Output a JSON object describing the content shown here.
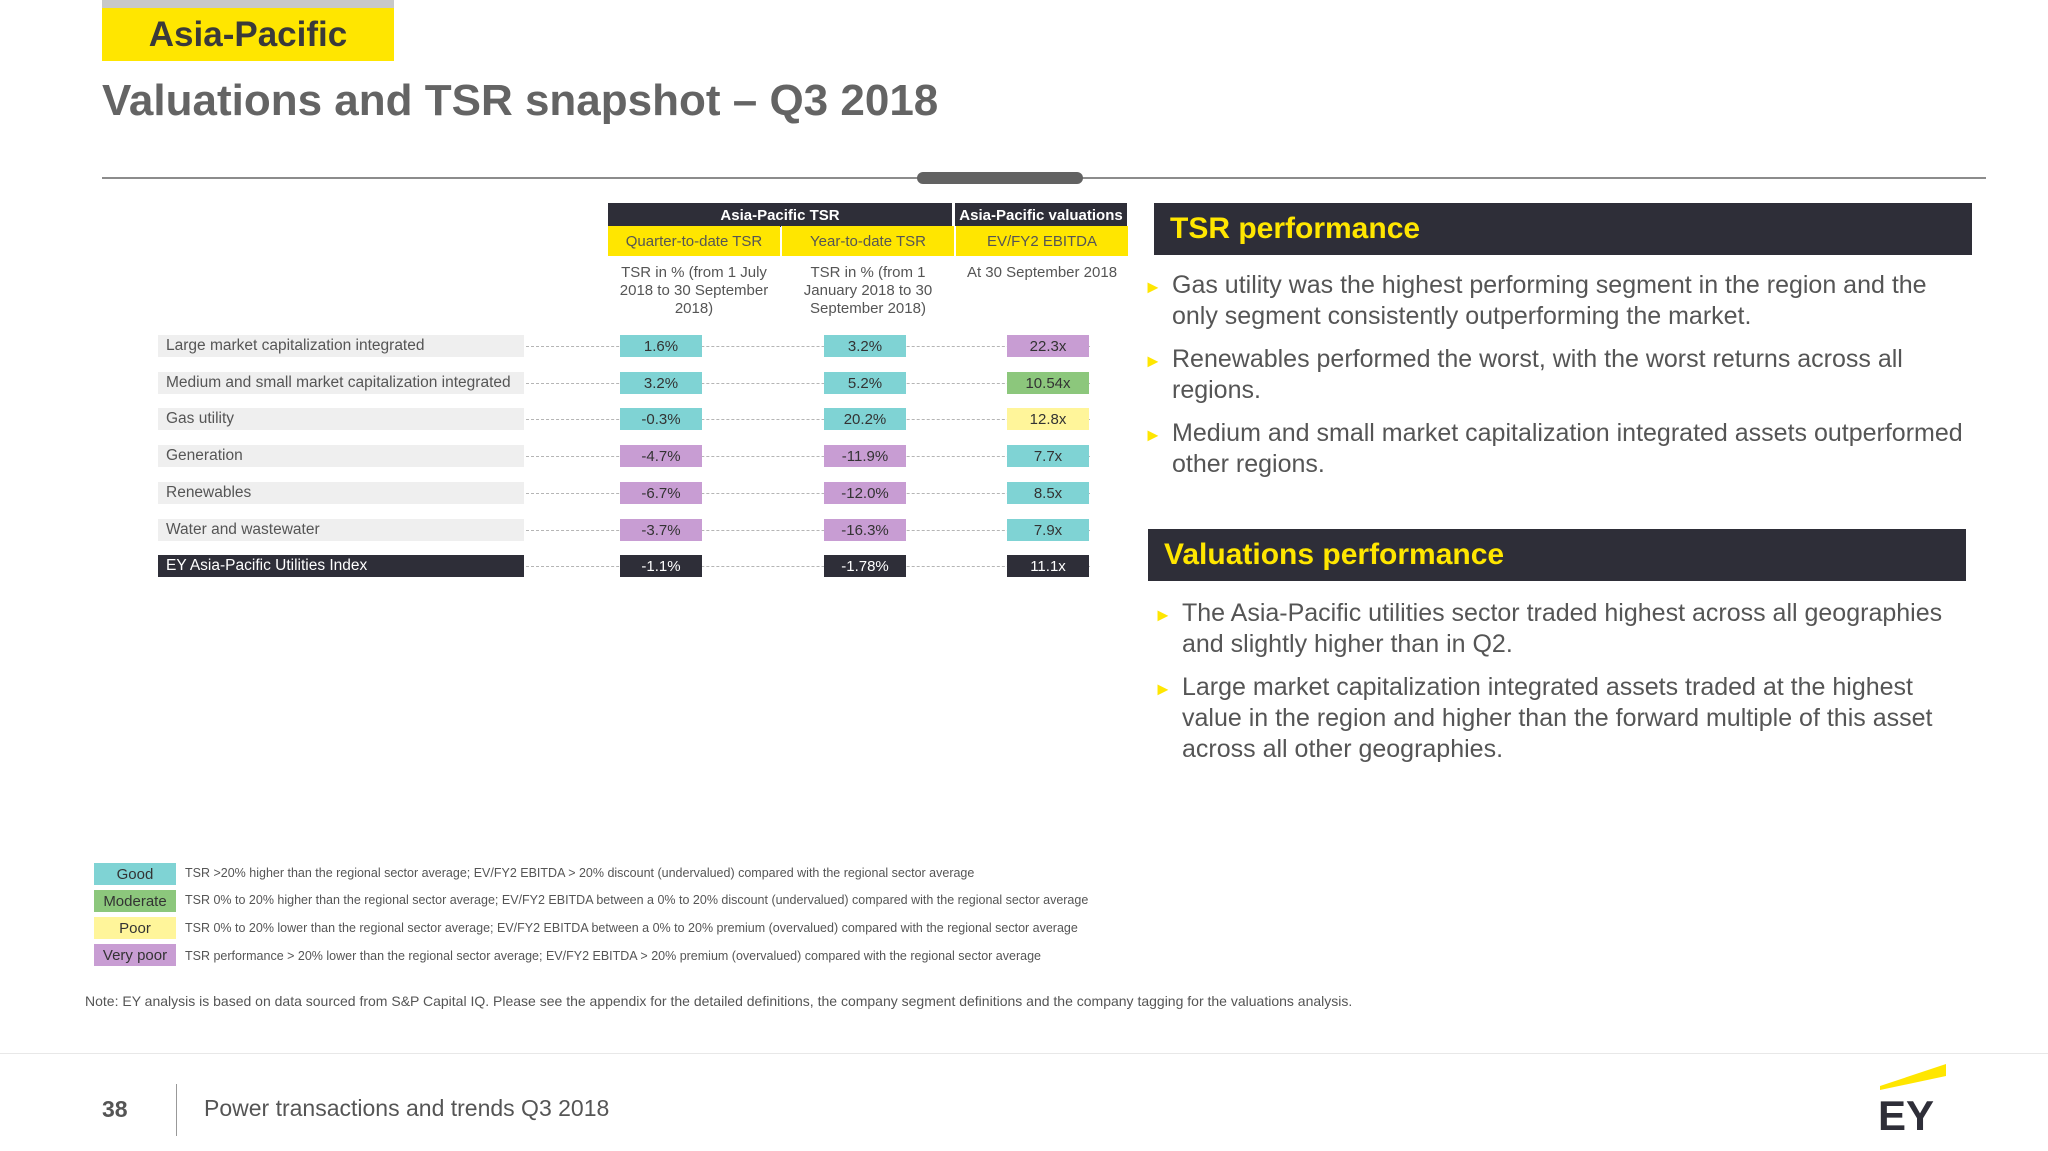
{
  "header": {
    "region_tag": "Asia-Pacific",
    "title": "Valuations and TSR snapshot – Q3 2018"
  },
  "table": {
    "group_tsr": "Asia-Pacific TSR",
    "group_valuations": "Asia-Pacific valuations",
    "columns": [
      {
        "label": "Quarter-to-date TSR",
        "note": "TSR in % (from 1 July 2018 to 30 September 2018)"
      },
      {
        "label": "Year-to-date TSR",
        "note": "TSR in % (from 1 January 2018 to 30 September 2018)"
      },
      {
        "label": "EV/FY2 EBITDA",
        "note": "At 30 September 2018"
      }
    ],
    "rows": [
      {
        "label": "Large market capitalization integrated",
        "qtd": "1.6%",
        "qtd_rating": "good",
        "ytd": "3.2%",
        "ytd_rating": "good",
        "ev": "22.3x",
        "ev_rating": "very-poor"
      },
      {
        "label": "Medium and small market capitalization integrated",
        "qtd": "3.2%",
        "qtd_rating": "good",
        "ytd": "5.2%",
        "ytd_rating": "good",
        "ev": "10.54x",
        "ev_rating": "moderate"
      },
      {
        "label": "Gas utility",
        "qtd": "-0.3%",
        "qtd_rating": "good",
        "ytd": "20.2%",
        "ytd_rating": "good",
        "ev": "12.8x",
        "ev_rating": "poor"
      },
      {
        "label": "Generation",
        "qtd": "-4.7%",
        "qtd_rating": "very-poor",
        "ytd": "-11.9%",
        "ytd_rating": "very-poor",
        "ev": "7.7x",
        "ev_rating": "good"
      },
      {
        "label": "Renewables",
        "qtd": "-6.7%",
        "qtd_rating": "very-poor",
        "ytd": "-12.0%",
        "ytd_rating": "very-poor",
        "ev": "8.5x",
        "ev_rating": "good"
      },
      {
        "label": "Water and wastewater",
        "qtd": "-3.7%",
        "qtd_rating": "very-poor",
        "ytd": "-16.3%",
        "ytd_rating": "very-poor",
        "ev": "7.9x",
        "ev_rating": "good"
      },
      {
        "label": "EY Asia-Pacific Utilities Index",
        "qtd": "-1.1%",
        "qtd_rating": "index",
        "ytd": "-1.78%",
        "ytd_rating": "index",
        "ev": "11.1x",
        "ev_rating": "index"
      }
    ]
  },
  "tsr_performance": {
    "heading": "TSR performance",
    "bullets": [
      "Gas utility was the highest performing segment in the region and the only segment consistently outperforming the market.",
      "Renewables performed the worst, with the worst returns across all regions.",
      "Medium and small market capitalization integrated assets outperformed other regions."
    ]
  },
  "valuations_performance": {
    "heading": "Valuations performance",
    "bullets": [
      "The Asia-Pacific utilities sector traded highest across all geographies and slightly higher than in Q2.",
      "Large market capitalization integrated assets traded at the highest value in the region and higher than the forward multiple of this asset across all other geographies."
    ]
  },
  "legend": [
    {
      "label": "Good",
      "color": "#7fd3d4",
      "text": "TSR  >20% higher than the regional sector average; EV/FY2 EBITDA > 20% discount  (undervalued) compared with the regional sector average"
    },
    {
      "label": "Moderate",
      "color": "#8cc77c",
      "text": "TSR 0% to 20% higher than the regional sector average; EV/FY2 EBITDA between a 0% to 20% discount  (undervalued) compared with the regional sector average"
    },
    {
      "label": "Poor",
      "color": "#fff59a",
      "text": "TSR 0% to 20% lower than the regional sector average; EV/FY2 EBITDA between a 0% to 20% premium (overvalued) compared with the regional sector average"
    },
    {
      "label": "Very poor",
      "color": "#c89dd3",
      "text": "TSR performance > 20% lower than the regional sector average; EV/FY2 EBITDA > 20% premium (overvalued) compared with the regional sector average"
    }
  ],
  "note": "Note: EY analysis is based on data sourced from S&P Capital IQ. Please see the appendix for the detailed definitions, the company segment definitions and the company tagging for the valuations analysis.",
  "footer": {
    "page_number": "38",
    "text": "Power transactions and trends Q3 2018",
    "logo_text": "EY"
  },
  "colors": {
    "ey_yellow": "#ffe600",
    "dark": "#2e2e38"
  }
}
